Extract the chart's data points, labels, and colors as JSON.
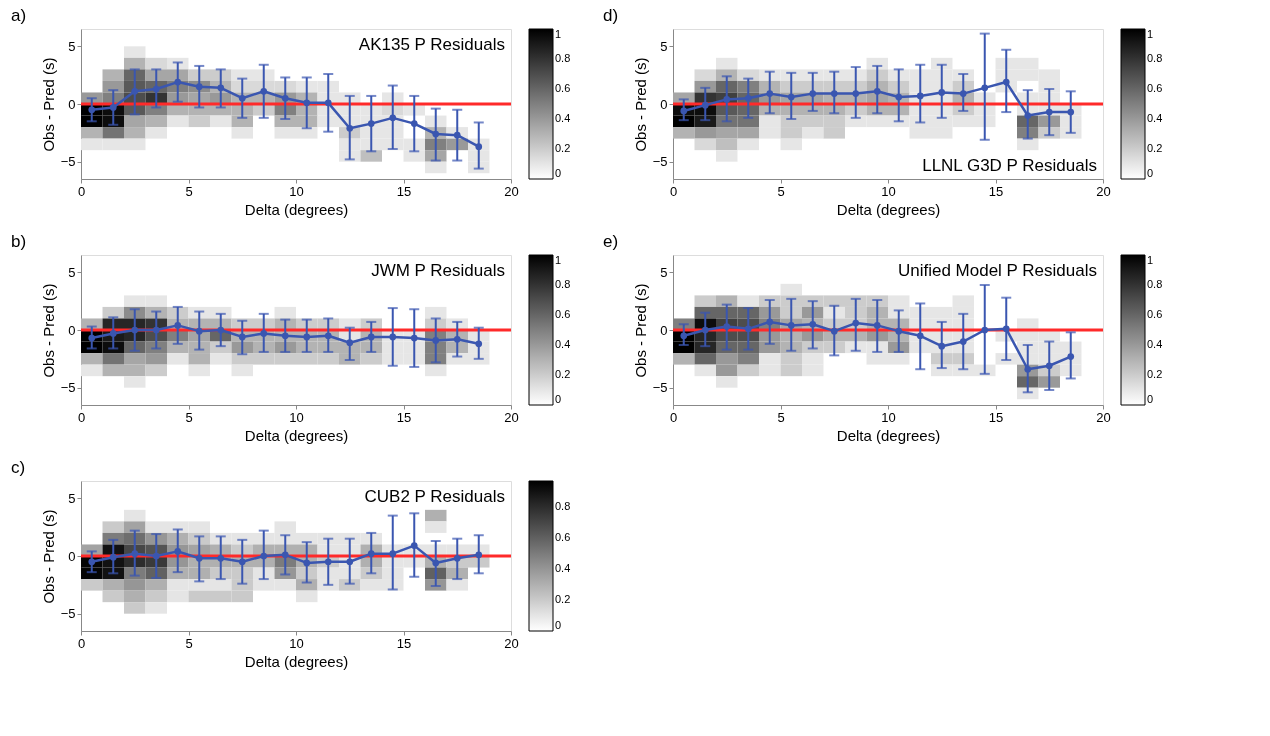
{
  "chart_data": [
    {
      "type": "heatmap",
      "title": "a)",
      "annotations": [
        "AK135 P Residuals"
      ],
      "xlabel": "Delta (degrees)",
      "ylabel": "Obs - Pred (s)",
      "x": [
        0.5,
        1.5,
        2.5,
        3.5,
        4.5,
        5.5,
        6.5,
        7.5,
        8.5,
        9.5,
        10.5,
        11.5,
        12.5,
        13.5,
        14.5,
        15.5,
        16.5,
        17.5,
        18.5
      ],
      "y": [
        4.5,
        3.5,
        2.5,
        1.5,
        0.5,
        -0.5,
        -1.5,
        -2.5,
        -3.5,
        -4.5,
        -5.5
      ],
      "cells": [
        [
          null,
          null,
          0.1,
          null,
          null,
          null,
          null,
          null,
          null,
          null,
          null,
          null,
          null,
          null,
          null,
          null,
          null,
          null,
          null
        ],
        [
          null,
          null,
          0.3,
          0.15,
          0.1,
          null,
          null,
          null,
          null,
          null,
          null,
          null,
          null,
          null,
          null,
          null,
          null,
          null,
          null
        ],
        [
          null,
          0.3,
          0.6,
          0.35,
          0.35,
          0.2,
          0.2,
          0.1,
          0.1,
          null,
          null,
          null,
          null,
          null,
          null,
          null,
          null,
          null,
          null
        ],
        [
          null,
          0.4,
          0.65,
          0.6,
          0.5,
          0.45,
          0.3,
          0.15,
          0.15,
          0.15,
          0.1,
          0.1,
          null,
          null,
          null,
          null,
          null,
          null,
          null
        ],
        [
          0.4,
          0.5,
          0.7,
          0.8,
          0.4,
          0.35,
          0.4,
          0.3,
          0.3,
          0.4,
          0.3,
          0.1,
          0.1,
          null,
          0.1,
          null,
          null,
          null,
          null
        ],
        [
          1,
          0.95,
          0.65,
          0.5,
          0.3,
          0.3,
          0.3,
          0.3,
          0.2,
          0.5,
          0.3,
          0.1,
          0.1,
          0.1,
          0.15,
          0.1,
          null,
          null,
          null
        ],
        [
          1,
          0.95,
          0.35,
          0.3,
          0.1,
          0.2,
          0.1,
          0.3,
          null,
          0.3,
          0.3,
          0.1,
          0.1,
          0.1,
          0.1,
          null,
          0.1,
          null,
          null
        ],
        [
          0.3,
          0.55,
          0.3,
          0.1,
          null,
          null,
          null,
          0.1,
          null,
          0.1,
          0.1,
          null,
          0.2,
          0.1,
          0.1,
          null,
          0.3,
          0.1,
          null
        ],
        [
          0.1,
          0.1,
          0.1,
          null,
          null,
          null,
          null,
          null,
          null,
          null,
          null,
          null,
          0.1,
          0.1,
          0.1,
          0.1,
          0.5,
          0.4,
          0.1
        ],
        [
          null,
          null,
          null,
          null,
          null,
          null,
          null,
          null,
          null,
          null,
          null,
          null,
          0.1,
          0.25,
          null,
          0.1,
          0.35,
          null,
          0.1
        ],
        [
          null,
          null,
          null,
          null,
          null,
          null,
          null,
          null,
          null,
          null,
          null,
          null,
          null,
          null,
          null,
          null,
          0.1,
          null,
          0.1
        ]
      ],
      "colors": [
        "#ffffff",
        "#000000"
      ],
      "clim": [
        0,
        1
      ],
      "cticks": [
        0,
        0.2,
        0.4,
        0.6,
        0.8,
        1
      ],
      "xlim": [
        0,
        20
      ],
      "xticks": [
        0,
        5,
        10,
        15,
        20
      ],
      "ylim": [
        -6.5,
        6.5
      ],
      "yticks": [
        -5,
        0,
        5
      ],
      "ref_lines": [
        {
          "axis": "y",
          "value": 0,
          "color": "#ff2a2a"
        }
      ],
      "series": [
        {
          "type": "line",
          "color": "#3a56b0",
          "marker": "circle",
          "x": [
            0.5,
            1.5,
            2.5,
            3.5,
            4.5,
            5.5,
            6.5,
            7.5,
            8.5,
            9.5,
            10.5,
            11.5,
            12.5,
            13.5,
            14.5,
            15.5,
            16.5,
            17.5,
            18.5
          ],
          "values": [
            -0.5,
            -0.3,
            1.1,
            1.3,
            1.9,
            1.5,
            1.4,
            0.5,
            1.1,
            0.5,
            0.1,
            0.1,
            -2.1,
            -1.7,
            -1.2,
            -1.7,
            -2.6,
            -2.7,
            -3.7
          ],
          "errors": [
            [
              -1.5,
              0.5
            ],
            [
              -1.8,
              1.2
            ],
            [
              -0.9,
              3.0
            ],
            [
              -0.3,
              3.0
            ],
            [
              0.2,
              3.6
            ],
            [
              -0.3,
              3.3
            ],
            [
              -0.3,
              3.0
            ],
            [
              -1.2,
              2.2
            ],
            [
              -1.2,
              3.4
            ],
            [
              -1.3,
              2.3
            ],
            [
              -2.1,
              2.3
            ],
            [
              -2.4,
              2.6
            ],
            [
              -4.8,
              0.7
            ],
            [
              -4.1,
              0.7
            ],
            [
              -3.9,
              1.6
            ],
            [
              -4.1,
              0.7
            ],
            [
              -4.9,
              -0.4
            ],
            [
              -4.9,
              -0.5
            ],
            [
              -5.6,
              -1.6
            ]
          ]
        }
      ]
    },
    {
      "type": "heatmap",
      "title": "d)",
      "annotations": [
        "LLNL G3D P Residuals"
      ],
      "xlabel": "Delta (degrees)",
      "ylabel": "Obs - Pred (s)",
      "x": [
        0.5,
        1.5,
        2.5,
        3.5,
        4.5,
        5.5,
        6.5,
        7.5,
        8.5,
        9.5,
        10.5,
        11.5,
        12.5,
        13.5,
        14.5,
        15.5,
        16.5,
        17.5,
        18.5
      ],
      "y": [
        3.5,
        2.5,
        1.5,
        0.5,
        -0.5,
        -1.5,
        -2.5,
        -3.5,
        -4.5
      ],
      "cells": [
        [
          null,
          null,
          0.1,
          null,
          null,
          null,
          null,
          null,
          null,
          0.1,
          null,
          null,
          0.1,
          null,
          null,
          0.1,
          0.1,
          null,
          null
        ],
        [
          null,
          0.15,
          0.3,
          0.15,
          0.1,
          0.1,
          0.1,
          0.1,
          0.1,
          0.2,
          0.1,
          0.1,
          0.1,
          0.1,
          null,
          0.1,
          0.1,
          0.1,
          null
        ],
        [
          null,
          0.4,
          0.6,
          0.5,
          0.3,
          0.2,
          0.2,
          0.2,
          0.2,
          0.3,
          0.2,
          0.1,
          0.1,
          0.2,
          null,
          0.1,
          null,
          0.1,
          null
        ],
        [
          0.35,
          0.8,
          0.75,
          0.6,
          0.4,
          0.35,
          0.35,
          0.3,
          0.3,
          0.35,
          0.3,
          0.1,
          0.1,
          0.3,
          0.1,
          null,
          0.1,
          0.1,
          null
        ],
        [
          0.95,
          0.95,
          0.65,
          0.6,
          0.3,
          0.3,
          0.3,
          0.3,
          0.2,
          0.3,
          0.3,
          0.1,
          0.1,
          0.2,
          0.1,
          null,
          0.1,
          0.1,
          0.1
        ],
        [
          1,
          0.9,
          0.55,
          0.55,
          0.1,
          0.2,
          0.2,
          0.2,
          0.1,
          0.1,
          0.1,
          0.1,
          0.1,
          0.1,
          0.1,
          null,
          0.6,
          0.4,
          0.1
        ],
        [
          0.3,
          0.4,
          0.35,
          0.35,
          0.1,
          0.2,
          0.1,
          0.2,
          null,
          null,
          null,
          0.1,
          0.1,
          null,
          null,
          null,
          0.5,
          0.2,
          0.1
        ],
        [
          null,
          0.15,
          0.25,
          0.1,
          null,
          0.1,
          null,
          null,
          null,
          null,
          null,
          null,
          null,
          null,
          null,
          null,
          0.1,
          null,
          null
        ],
        [
          null,
          null,
          0.1,
          null,
          null,
          null,
          null,
          null,
          null,
          null,
          null,
          null,
          null,
          null,
          null,
          null,
          null,
          null,
          null
        ]
      ],
      "colors": [
        "#ffffff",
        "#000000"
      ],
      "clim": [
        0,
        1
      ],
      "cticks": [
        0,
        0.2,
        0.4,
        0.6,
        0.8,
        1
      ],
      "xlim": [
        0,
        20
      ],
      "xticks": [
        0,
        5,
        10,
        15,
        20
      ],
      "ylim": [
        -6.5,
        6.5
      ],
      "yticks": [
        -5,
        0,
        5
      ],
      "ref_lines": [
        {
          "axis": "y",
          "value": 0,
          "color": "#ff2a2a"
        }
      ],
      "series": [
        {
          "type": "line",
          "color": "#3a56b0",
          "marker": "circle",
          "x": [
            0.5,
            1.5,
            2.5,
            3.5,
            4.5,
            5.5,
            6.5,
            7.5,
            8.5,
            9.5,
            10.5,
            11.5,
            12.5,
            13.5,
            14.5,
            15.5,
            16.5,
            17.5,
            18.5
          ],
          "values": [
            -0.6,
            -0.1,
            0.4,
            0.5,
            0.9,
            0.6,
            0.9,
            0.9,
            0.9,
            1.1,
            0.6,
            0.7,
            1.0,
            0.9,
            1.4,
            1.9,
            -1.0,
            -0.7,
            -0.7
          ],
          "errors": [
            [
              -1.4,
              0.4
            ],
            [
              -1.4,
              1.4
            ],
            [
              -1.5,
              2.4
            ],
            [
              -1.2,
              2.2
            ],
            [
              -0.8,
              2.8
            ],
            [
              -1.3,
              2.7
            ],
            [
              -0.6,
              2.7
            ],
            [
              -0.8,
              2.8
            ],
            [
              -1.2,
              3.2
            ],
            [
              -0.8,
              3.3
            ],
            [
              -1.5,
              3.0
            ],
            [
              -1.6,
              3.4
            ],
            [
              -1.2,
              3.4
            ],
            [
              -0.6,
              2.6
            ],
            [
              -3.1,
              6.1
            ],
            [
              -0.7,
              4.7
            ],
            [
              -3.0,
              1.2
            ],
            [
              -2.7,
              1.3
            ],
            [
              -2.5,
              1.1
            ]
          ]
        }
      ]
    },
    {
      "type": "heatmap",
      "title": "b)",
      "annotations": [
        "JWM P Residuals"
      ],
      "xlabel": "Delta (degrees)",
      "ylabel": "Obs - Pred (s)",
      "x": [
        0.5,
        1.5,
        2.5,
        3.5,
        4.5,
        5.5,
        6.5,
        7.5,
        8.5,
        9.5,
        10.5,
        11.5,
        12.5,
        13.5,
        14.5,
        15.5,
        16.5,
        17.5,
        18.5
      ],
      "y": [
        2.5,
        1.5,
        0.5,
        -0.5,
        -1.5,
        -2.5,
        -3.5,
        -4.5
      ],
      "cells": [
        [
          null,
          null,
          0.1,
          0.1,
          null,
          null,
          null,
          null,
          null,
          null,
          null,
          null,
          null,
          null,
          null,
          null,
          null,
          null,
          null
        ],
        [
          null,
          0.2,
          0.45,
          0.3,
          0.2,
          0.1,
          0.1,
          null,
          null,
          0.1,
          null,
          null,
          null,
          null,
          null,
          null,
          0.1,
          null,
          null
        ],
        [
          0.3,
          0.85,
          0.85,
          0.8,
          0.3,
          0.3,
          0.3,
          0.2,
          0.2,
          0.3,
          0.2,
          0.2,
          0.1,
          0.2,
          null,
          null,
          0.2,
          0.1,
          null
        ],
        [
          1,
          0.9,
          0.85,
          0.7,
          0.5,
          0.35,
          0.6,
          0.3,
          0.3,
          0.3,
          0.3,
          0.3,
          0.1,
          0.3,
          0.1,
          0.1,
          0.5,
          0.3,
          0.1
        ],
        [
          1,
          0.95,
          0.6,
          0.5,
          0.3,
          0.3,
          0.2,
          0.4,
          0.3,
          0.4,
          0.3,
          0.3,
          0.3,
          0.3,
          0.1,
          0.1,
          0.5,
          0.3,
          0.1
        ],
        [
          0.3,
          0.55,
          0.35,
          0.4,
          0.1,
          0.3,
          0.1,
          0.2,
          0.2,
          0.2,
          0.2,
          0.2,
          0.3,
          0.2,
          0.1,
          0.1,
          0.5,
          0.1,
          0.1
        ],
        [
          0.1,
          0.3,
          0.3,
          0.2,
          null,
          0.1,
          null,
          0.1,
          null,
          null,
          null,
          null,
          null,
          null,
          null,
          null,
          0.1,
          null,
          null
        ],
        [
          null,
          null,
          0.1,
          null,
          null,
          null,
          null,
          null,
          null,
          null,
          null,
          null,
          null,
          null,
          null,
          null,
          null,
          null,
          null
        ]
      ],
      "colors": [
        "#ffffff",
        "#000000"
      ],
      "clim": [
        0,
        1
      ],
      "cticks": [
        0,
        0.2,
        0.4,
        0.6,
        0.8,
        1
      ],
      "xlim": [
        0,
        20
      ],
      "xticks": [
        0,
        5,
        10,
        15,
        20
      ],
      "ylim": [
        -6.5,
        6.5
      ],
      "yticks": [
        -5,
        0,
        5
      ],
      "ref_lines": [
        {
          "axis": "y",
          "value": 0,
          "color": "#ff2a2a"
        }
      ],
      "series": [
        {
          "type": "line",
          "color": "#3a56b0",
          "marker": "circle",
          "x": [
            0.5,
            1.5,
            2.5,
            3.5,
            4.5,
            5.5,
            6.5,
            7.5,
            8.5,
            9.5,
            10.5,
            11.5,
            12.5,
            13.5,
            14.5,
            15.5,
            16.5,
            17.5,
            18.5
          ],
          "values": [
            -0.7,
            -0.3,
            0.0,
            0.0,
            0.4,
            -0.1,
            0.0,
            -0.6,
            -0.3,
            -0.5,
            -0.6,
            -0.5,
            -1.1,
            -0.6,
            -0.6,
            -0.7,
            -0.9,
            -0.8,
            -1.2
          ],
          "errors": [
            [
              -1.6,
              0.3
            ],
            [
              -1.6,
              1.1
            ],
            [
              -1.8,
              1.8
            ],
            [
              -1.6,
              1.6
            ],
            [
              -1.2,
              2.0
            ],
            [
              -1.7,
              1.6
            ],
            [
              -1.4,
              1.4
            ],
            [
              -2.1,
              0.8
            ],
            [
              -1.9,
              1.4
            ],
            [
              -1.9,
              0.9
            ],
            [
              -1.9,
              0.9
            ],
            [
              -1.9,
              1.0
            ],
            [
              -2.6,
              0.2
            ],
            [
              -1.9,
              0.7
            ],
            [
              -3.1,
              1.9
            ],
            [
              -3.2,
              1.8
            ],
            [
              -2.8,
              1.0
            ],
            [
              -2.3,
              0.7
            ],
            [
              -2.5,
              0.2
            ]
          ]
        }
      ]
    },
    {
      "type": "heatmap",
      "title": "e)",
      "annotations": [
        "Unified Model P Residuals"
      ],
      "xlabel": "Delta (degrees)",
      "ylabel": "Obs - Pred (s)",
      "x": [
        0.5,
        1.5,
        2.5,
        3.5,
        4.5,
        5.5,
        6.5,
        7.5,
        8.5,
        9.5,
        10.5,
        11.5,
        12.5,
        13.5,
        14.5,
        15.5,
        16.5,
        17.5,
        18.5
      ],
      "y": [
        3.5,
        2.5,
        1.5,
        0.5,
        -0.5,
        -1.5,
        -2.5,
        -3.5,
        -4.5,
        -5.5
      ],
      "cells": [
        [
          null,
          null,
          null,
          null,
          null,
          0.1,
          null,
          null,
          null,
          null,
          null,
          null,
          null,
          null,
          null,
          null,
          null,
          null,
          null
        ],
        [
          null,
          0.2,
          0.3,
          0.1,
          0.2,
          0.2,
          0.2,
          0.2,
          0.2,
          0.2,
          0.1,
          null,
          null,
          0.1,
          null,
          null,
          null,
          null,
          null
        ],
        [
          null,
          0.6,
          0.6,
          0.6,
          0.4,
          0.2,
          0.4,
          0.1,
          0.2,
          0.3,
          0.1,
          0.1,
          0.1,
          0.1,
          null,
          null,
          null,
          null,
          null
        ],
        [
          0.5,
          0.95,
          0.75,
          0.7,
          0.5,
          0.35,
          0.3,
          0.2,
          0.2,
          0.3,
          0.3,
          0.1,
          0.1,
          0.1,
          null,
          null,
          0.1,
          null,
          null
        ],
        [
          1,
          0.85,
          0.7,
          0.7,
          0.4,
          0.3,
          0.4,
          0.3,
          0.3,
          0.4,
          0.3,
          0.1,
          0.1,
          0.1,
          null,
          0.1,
          0.1,
          0.1,
          null
        ],
        [
          1,
          0.85,
          0.6,
          0.6,
          0.4,
          0.3,
          0.2,
          0.2,
          0.1,
          0.1,
          0.4,
          0.1,
          0.1,
          0.1,
          null,
          null,
          0.1,
          0.1,
          0.1
        ],
        [
          0.3,
          0.6,
          0.4,
          0.5,
          0.1,
          0.2,
          0.1,
          null,
          null,
          0.1,
          0.1,
          null,
          0.2,
          0.2,
          null,
          0.1,
          0.1,
          0.1,
          0.1
        ],
        [
          null,
          0.1,
          0.4,
          0.2,
          0.1,
          0.2,
          0.1,
          null,
          null,
          null,
          null,
          null,
          0.1,
          0.1,
          0.1,
          null,
          0.4,
          0.2,
          0.1
        ],
        [
          null,
          null,
          0.1,
          null,
          null,
          null,
          null,
          null,
          null,
          null,
          null,
          null,
          null,
          null,
          null,
          null,
          0.6,
          0.4,
          null
        ],
        [
          null,
          null,
          null,
          null,
          null,
          null,
          null,
          null,
          null,
          null,
          null,
          null,
          null,
          null,
          null,
          null,
          0.1,
          null,
          null
        ]
      ],
      "colors": [
        "#ffffff",
        "#000000"
      ],
      "clim": [
        0,
        1
      ],
      "cticks": [
        0,
        0.2,
        0.4,
        0.6,
        0.8,
        1
      ],
      "xlim": [
        0,
        20
      ],
      "xticks": [
        0,
        5,
        10,
        15,
        20
      ],
      "ylim": [
        -6.5,
        6.5
      ],
      "yticks": [
        -5,
        0,
        5
      ],
      "ref_lines": [
        {
          "axis": "y",
          "value": 0,
          "color": "#ff2a2a"
        }
      ],
      "series": [
        {
          "type": "line",
          "color": "#3a56b0",
          "marker": "circle",
          "x": [
            0.5,
            1.5,
            2.5,
            3.5,
            4.5,
            5.5,
            6.5,
            7.5,
            8.5,
            9.5,
            10.5,
            11.5,
            12.5,
            13.5,
            14.5,
            15.5,
            16.5,
            17.5,
            18.5
          ],
          "values": [
            -0.5,
            0.0,
            0.3,
            0.1,
            0.7,
            0.4,
            0.5,
            -0.1,
            0.6,
            0.4,
            -0.1,
            -0.5,
            -1.4,
            -1.0,
            0.0,
            0.1,
            -3.4,
            -3.1,
            -2.3
          ],
          "errors": [
            [
              -1.3,
              0.5
            ],
            [
              -1.4,
              1.5
            ],
            [
              -1.7,
              2.2
            ],
            [
              -1.7,
              1.9
            ],
            [
              -1.2,
              2.6
            ],
            [
              -1.8,
              2.7
            ],
            [
              -1.6,
              2.5
            ],
            [
              -2.2,
              2.1
            ],
            [
              -1.8,
              2.7
            ],
            [
              -1.9,
              2.6
            ],
            [
              -1.9,
              1.7
            ],
            [
              -3.4,
              2.3
            ],
            [
              -3.3,
              0.7
            ],
            [
              -3.4,
              1.4
            ],
            [
              -3.8,
              3.9
            ],
            [
              -2.6,
              2.8
            ],
            [
              -5.4,
              -1.3
            ],
            [
              -5.2,
              -1.0
            ],
            [
              -4.2,
              -0.2
            ]
          ]
        }
      ]
    },
    {
      "type": "heatmap",
      "title": "c)",
      "annotations": [
        "CUB2 P Residuals"
      ],
      "xlabel": "Delta (degrees)",
      "ylabel": "Obs - Pred (s)",
      "x": [
        0.5,
        1.5,
        2.5,
        3.5,
        4.5,
        5.5,
        6.5,
        7.5,
        8.5,
        9.5,
        10.5,
        11.5,
        12.5,
        13.5,
        14.5,
        15.5,
        16.5,
        17.5,
        18.5
      ],
      "y": [
        3.5,
        2.5,
        1.5,
        0.5,
        -0.5,
        -1.5,
        -2.5,
        -3.5,
        -4.5
      ],
      "cells": [
        [
          null,
          null,
          0.1,
          null,
          null,
          null,
          null,
          null,
          null,
          null,
          null,
          null,
          null,
          null,
          null,
          null,
          0.3,
          null,
          null
        ],
        [
          null,
          0.2,
          0.35,
          0.1,
          0.1,
          0.1,
          null,
          null,
          null,
          0.1,
          null,
          null,
          null,
          null,
          null,
          null,
          0.1,
          null,
          null
        ],
        [
          null,
          0.5,
          0.55,
          0.4,
          0.3,
          0.2,
          0.1,
          0.1,
          0.1,
          0.1,
          0.1,
          0.1,
          0.1,
          0.1,
          null,
          null,
          null,
          null,
          null
        ],
        [
          0.35,
          0.9,
          0.7,
          0.65,
          0.4,
          0.35,
          0.3,
          0.2,
          0.3,
          0.3,
          0.3,
          0.1,
          0.1,
          0.3,
          0.1,
          0.1,
          0.1,
          0.1,
          0.1
        ],
        [
          0.95,
          0.9,
          0.8,
          0.75,
          0.4,
          0.3,
          0.3,
          0.3,
          0.3,
          0.5,
          0.3,
          0.2,
          0.1,
          0.3,
          0.1,
          0.1,
          0.3,
          0.2,
          0.2
        ],
        [
          0.95,
          0.9,
          0.5,
          0.6,
          0.3,
          0.3,
          0.2,
          0.2,
          0.1,
          0.4,
          0.2,
          0.1,
          0.1,
          0.2,
          0.1,
          null,
          0.6,
          0.3,
          null
        ],
        [
          0.2,
          0.3,
          0.4,
          0.3,
          0.1,
          0.1,
          0.1,
          0.2,
          0.1,
          0.1,
          0.3,
          0.1,
          0.2,
          0.1,
          0.1,
          null,
          0.4,
          0.1,
          null
        ],
        [
          null,
          0.2,
          0.3,
          0.2,
          0.1,
          0.2,
          0.2,
          0.2,
          null,
          null,
          0.1,
          null,
          null,
          null,
          null,
          null,
          null,
          null,
          null
        ],
        [
          null,
          null,
          0.2,
          0.1,
          null,
          null,
          null,
          null,
          null,
          null,
          null,
          null,
          null,
          null,
          null,
          null,
          null,
          null,
          null
        ]
      ],
      "colors": [
        "#ffffff",
        "#000000"
      ],
      "clim": [
        0,
        0.97
      ],
      "cticks": [
        0,
        0.2,
        0.4,
        0.6,
        0.8
      ],
      "xlim": [
        0,
        20
      ],
      "xticks": [
        0,
        5,
        10,
        15,
        20
      ],
      "ylim": [
        -6.5,
        6.5
      ],
      "yticks": [
        -5,
        0,
        5
      ],
      "ref_lines": [
        {
          "axis": "y",
          "value": 0,
          "color": "#ff2a2a"
        }
      ],
      "series": [
        {
          "type": "line",
          "color": "#3a56b0",
          "marker": "circle",
          "x": [
            0.5,
            1.5,
            2.5,
            3.5,
            4.5,
            5.5,
            6.5,
            7.5,
            8.5,
            9.5,
            10.5,
            11.5,
            12.5,
            13.5,
            14.5,
            15.5,
            16.5,
            17.5,
            18.5
          ],
          "values": [
            -0.5,
            -0.1,
            0.2,
            0.0,
            0.4,
            -0.2,
            -0.2,
            -0.5,
            0.0,
            0.1,
            -0.6,
            -0.5,
            -0.5,
            0.2,
            0.2,
            0.9,
            -0.6,
            -0.2,
            0.1
          ],
          "errors": [
            [
              -1.4,
              0.4
            ],
            [
              -1.5,
              1.4
            ],
            [
              -1.7,
              2.2
            ],
            [
              -1.9,
              1.9
            ],
            [
              -1.4,
              2.3
            ],
            [
              -2.2,
              1.7
            ],
            [
              -2.0,
              1.7
            ],
            [
              -2.4,
              1.4
            ],
            [
              -2.0,
              2.2
            ],
            [
              -1.6,
              1.8
            ],
            [
              -2.3,
              1.2
            ],
            [
              -2.5,
              1.5
            ],
            [
              -2.4,
              1.5
            ],
            [
              -1.5,
              2.0
            ],
            [
              -2.9,
              3.5
            ],
            [
              -1.8,
              3.7
            ],
            [
              -2.6,
              1.3
            ],
            [
              -2.0,
              1.5
            ],
            [
              -1.5,
              1.8
            ]
          ]
        }
      ]
    }
  ]
}
